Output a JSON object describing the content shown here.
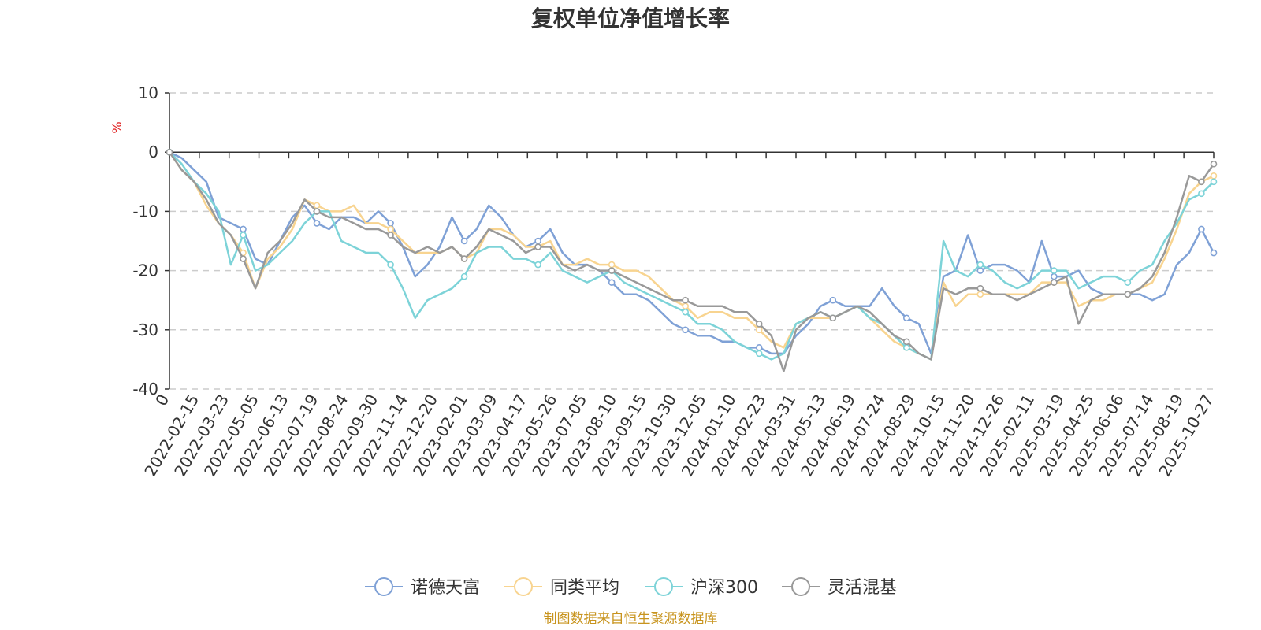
{
  "chart_data": {
    "type": "line",
    "title": "复权单位净值增长率",
    "ylabel": "%",
    "ylim": [
      -40,
      10
    ],
    "yticks": [
      "10",
      "0",
      "-10",
      "-20",
      "-30",
      "-40"
    ],
    "grid": true,
    "legend_position": "bottom",
    "x_start_label": "0",
    "x_tick_labels": [
      "2022-02-15",
      "2022-03-23",
      "2022-05-05",
      "2022-06-13",
      "2022-07-19",
      "2022-08-24",
      "2022-09-30",
      "2022-11-14",
      "2022-12-20",
      "2023-02-01",
      "2023-03-09",
      "2023-04-17",
      "2023-05-26",
      "2023-07-05",
      "2023-08-10",
      "2023-09-15",
      "2023-10-30",
      "2023-12-05",
      "2024-01-10",
      "2024-02-23",
      "2024-03-31",
      "2024-05-13",
      "2024-06-19",
      "2024-07-24",
      "2024-08-29",
      "2024-10-15",
      "2024-11-20",
      "2024-12-26",
      "2025-02-11",
      "2025-03-19",
      "2025-04-25",
      "2025-06-06",
      "2025-07-14",
      "2025-08-19",
      "2025-10-27"
    ],
    "series": [
      {
        "name": "诺德天富",
        "color": "#7fa1d6",
        "values": [
          0,
          -1,
          -3,
          -5,
          -11,
          -12,
          -13,
          -18,
          -19,
          -15,
          -11,
          -9,
          -12,
          -13,
          -11,
          -11,
          -12,
          -10,
          -12,
          -16,
          -21,
          -19,
          -16,
          -11,
          -15,
          -13,
          -9,
          -11,
          -14,
          -16,
          -15,
          -13,
          -17,
          -19,
          -19,
          -20,
          -22,
          -24,
          -24,
          -25,
          -27,
          -29,
          -30,
          -31,
          -31,
          -32,
          -32,
          -33,
          -33,
          -34,
          -34,
          -31,
          -29,
          -26,
          -25,
          -26,
          -26,
          -26,
          -23,
          -26,
          -28,
          -29,
          -34,
          -21,
          -20,
          -14,
          -20,
          -19,
          -19,
          -20,
          -22,
          -15,
          -21,
          -21,
          -20,
          -23,
          -24,
          -24,
          -24,
          -24,
          -25,
          -24,
          -19,
          -17,
          -13,
          -17
        ]
      },
      {
        "name": "同类平均",
        "color": "#f8d490",
        "values": [
          0,
          -3,
          -5,
          -9,
          -12,
          -14,
          -17,
          -23,
          -18,
          -16,
          -13,
          -8,
          -9,
          -10,
          -10,
          -9,
          -12,
          -12,
          -13,
          -15,
          -17,
          -17,
          -17,
          -16,
          -18,
          -17,
          -13,
          -13,
          -14,
          -16,
          -16,
          -15,
          -19,
          -19,
          -18,
          -19,
          -19,
          -20,
          -20,
          -21,
          -23,
          -25,
          -26,
          -28,
          -27,
          -27,
          -28,
          -28,
          -30,
          -32,
          -33,
          -29,
          -28,
          -28,
          -28,
          -27,
          -26,
          -28,
          -30,
          -32,
          -33,
          -34,
          -35,
          -22,
          -26,
          -24,
          -24,
          -24,
          -24,
          -24,
          -24,
          -22,
          -22,
          -22,
          -26,
          -25,
          -25,
          -24,
          -24,
          -23,
          -22,
          -18,
          -13,
          -7,
          -5,
          -4
        ]
      },
      {
        "name": "沪深300",
        "color": "#7dd3d8",
        "values": [
          0,
          -2,
          -5,
          -7,
          -10,
          -19,
          -14,
          -20,
          -19,
          -17,
          -15,
          -12,
          -10,
          -10,
          -15,
          -16,
          -17,
          -17,
          -19,
          -23,
          -28,
          -25,
          -24,
          -23,
          -21,
          -17,
          -16,
          -16,
          -18,
          -18,
          -19,
          -17,
          -20,
          -21,
          -22,
          -21,
          -20,
          -22,
          -23,
          -24,
          -25,
          -26,
          -27,
          -29,
          -29,
          -30,
          -32,
          -33,
          -34,
          -35,
          -34,
          -29,
          -28,
          -27,
          -28,
          -27,
          -26,
          -28,
          -29,
          -31,
          -33,
          -34,
          -35,
          -15,
          -20,
          -21,
          -19,
          -20,
          -22,
          -23,
          -22,
          -20,
          -20,
          -20,
          -23,
          -22,
          -21,
          -21,
          -22,
          -20,
          -19,
          -15,
          -12,
          -8,
          -7,
          -5
        ]
      },
      {
        "name": "灵活混基",
        "color": "#999999",
        "values": [
          0,
          -3,
          -5,
          -8,
          -12,
          -14,
          -18,
          -23,
          -17,
          -15,
          -12,
          -8,
          -10,
          -11,
          -11,
          -12,
          -13,
          -13,
          -14,
          -16,
          -17,
          -16,
          -17,
          -16,
          -18,
          -16,
          -13,
          -14,
          -15,
          -17,
          -16,
          -16,
          -19,
          -20,
          -19,
          -20,
          -20,
          -21,
          -22,
          -23,
          -24,
          -25,
          -25,
          -26,
          -26,
          -26,
          -27,
          -27,
          -29,
          -31,
          -37,
          -30,
          -28,
          -27,
          -28,
          -27,
          -26,
          -27,
          -29,
          -31,
          -32,
          -34,
          -35,
          -23,
          -24,
          -23,
          -23,
          -24,
          -24,
          -25,
          -24,
          -23,
          -22,
          -21,
          -29,
          -25,
          -24,
          -24,
          -24,
          -23,
          -21,
          -17,
          -11,
          -4,
          -5,
          -2
        ]
      }
    ]
  },
  "source": "制图数据来自恒生聚源数据库"
}
